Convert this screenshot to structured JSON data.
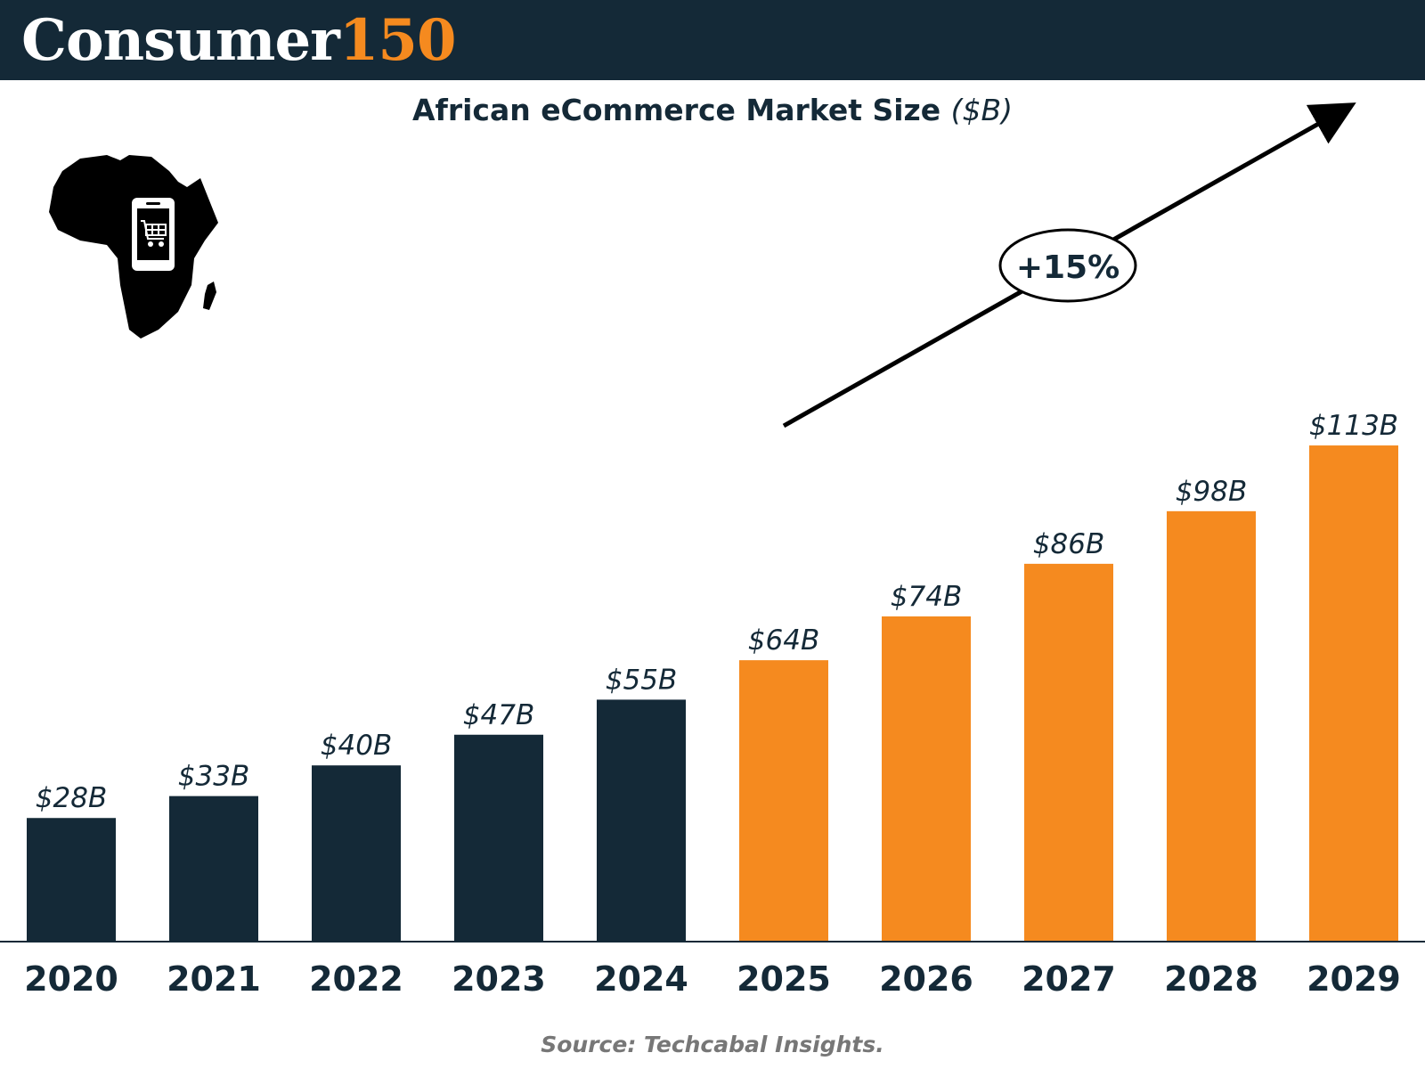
{
  "brand": {
    "word": "Consumer",
    "number": "150"
  },
  "growth_label": "+15%",
  "source": "Source: Techcabal Insights.",
  "colors": {
    "historic": "#142937",
    "forecast": "#f58a1f",
    "header_bg": "#142937"
  },
  "icons": [
    "africa-map-icon",
    "shopping-cart-phone-icon"
  ],
  "chart_data": {
    "type": "bar",
    "title": "African eCommerce Market Size",
    "title_unit": "($B)",
    "categories": [
      "2020",
      "2021",
      "2022",
      "2023",
      "2024",
      "2025",
      "2026",
      "2027",
      "2028",
      "2029"
    ],
    "values": [
      28,
      33,
      40,
      47,
      55,
      64,
      74,
      86,
      98,
      113
    ],
    "data_labels": [
      "$28B",
      "$33B",
      "$40B",
      "$47B",
      "$55B",
      "$64B",
      "$74B",
      "$86B",
      "$98B",
      "$113B"
    ],
    "series_colors": [
      "historic",
      "historic",
      "historic",
      "historic",
      "historic",
      "forecast",
      "forecast",
      "forecast",
      "forecast",
      "forecast"
    ],
    "ylim": [
      0,
      120
    ],
    "grid": false,
    "annotation": "+15%"
  }
}
